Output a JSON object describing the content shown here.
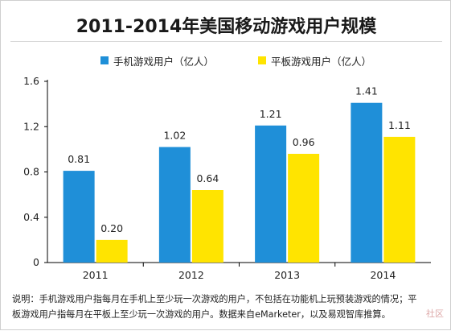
{
  "chart_data": {
    "type": "bar",
    "title": "2011-2014年美国移动游戏用户规模",
    "categories": [
      "2011",
      "2012",
      "2013",
      "2014"
    ],
    "series": [
      {
        "name": "手机游戏用户（亿人）",
        "values": [
          0.81,
          1.02,
          1.21,
          1.41
        ],
        "color": "#1f8fd8"
      },
      {
        "name": "平板游戏用户（亿人）",
        "values": [
          0.2,
          0.64,
          0.96,
          1.11
        ],
        "color": "#ffe400"
      }
    ],
    "value_labels": [
      [
        "0.81",
        "1.02",
        "1.21",
        "1.41"
      ],
      [
        "0.20",
        "0.64",
        "0.96",
        "1.11"
      ]
    ],
    "yticks": [
      "0",
      "0.4",
      "0.8",
      "1.2",
      "1.6"
    ],
    "ylim": [
      0,
      1.6
    ],
    "xlabel": "",
    "ylabel": "",
    "grid": false,
    "legend": "top"
  },
  "footnote": {
    "line1": "说明：手机游戏用户指每月在手机上至少玩一次游戏的用户，不包括在功能机上玩预装游戏的情况；平",
    "line2": "板游戏用户指每月在平板上至少玩一次游戏的用户。数据来自eMarketer，以及易观智库推算。"
  },
  "watermark": {
    "text": "社区"
  },
  "colors": {
    "axis": "#000000",
    "title_rule": "#d8d8d8"
  }
}
